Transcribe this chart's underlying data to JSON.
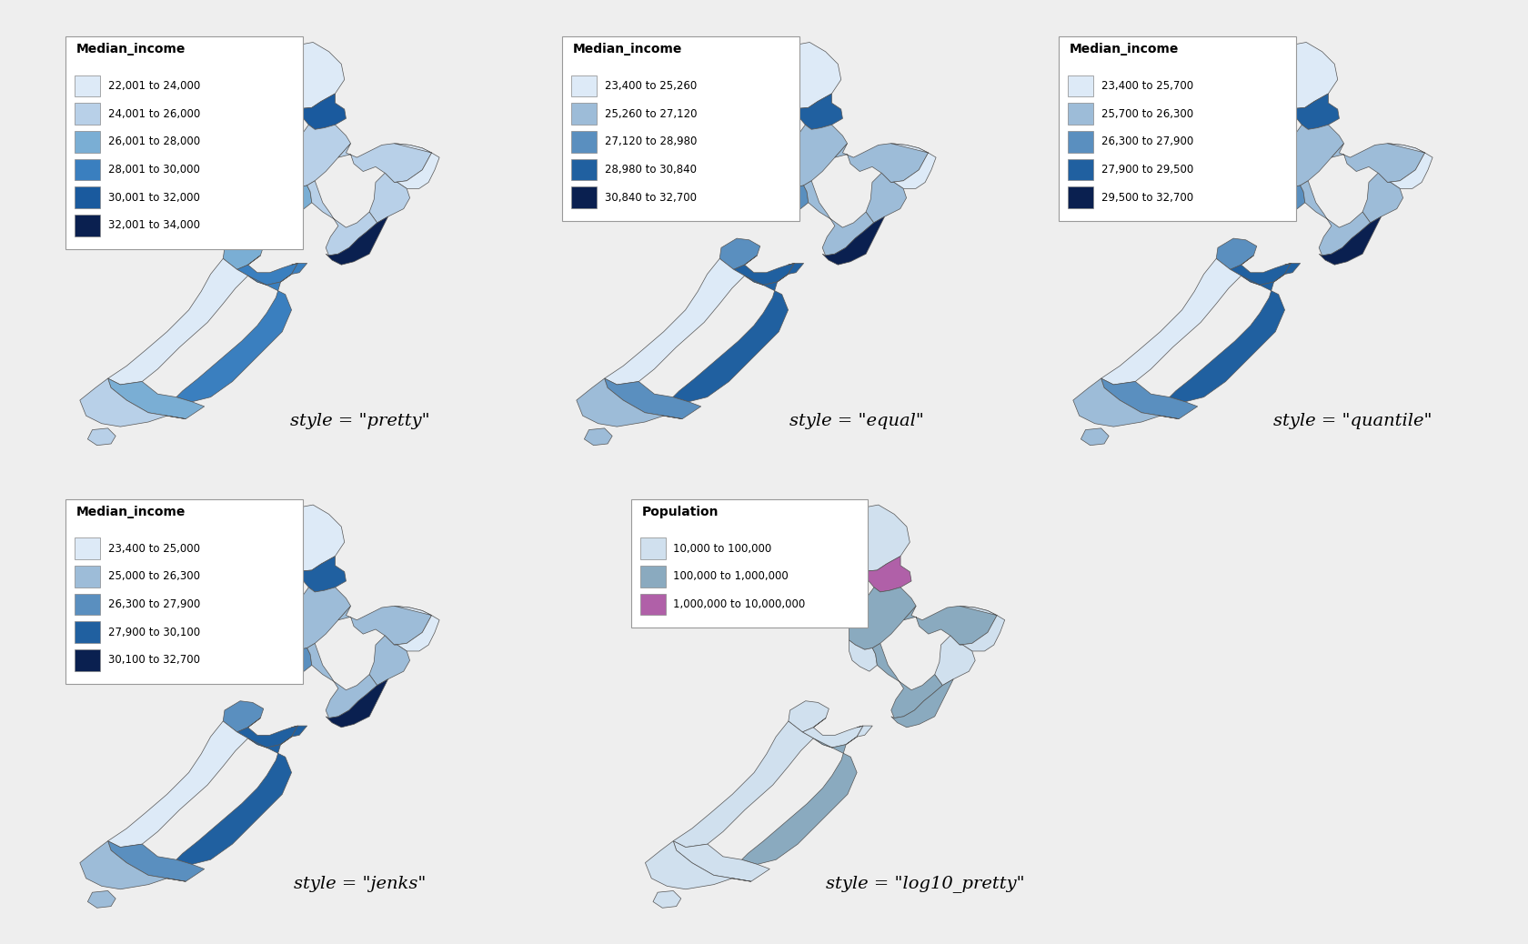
{
  "panels": [
    {
      "style_label": "style = \"pretty\"",
      "legend_title": "Median_income",
      "legend_entries": [
        "22,001 to 24,000",
        "24,001 to 26,000",
        "26,001 to 28,000",
        "28,001 to 30,000",
        "30,001 to 32,000",
        "32,001 to 34,000"
      ],
      "legend_colors": [
        "#ddeaf7",
        "#b8d0e8",
        "#7aaed4",
        "#3a7fbf",
        "#1a5a9e",
        "#0a2050"
      ]
    },
    {
      "style_label": "style = \"equal\"",
      "legend_title": "Median_income",
      "legend_entries": [
        "23,400 to 25,260",
        "25,260 to 27,120",
        "27,120 to 28,980",
        "28,980 to 30,840",
        "30,840 to 32,700"
      ],
      "legend_colors": [
        "#ddeaf7",
        "#9dbcd8",
        "#5a8fbf",
        "#2060a0",
        "#0a2050"
      ]
    },
    {
      "style_label": "style = \"quantile\"",
      "legend_title": "Median_income",
      "legend_entries": [
        "23,400 to 25,700",
        "25,700 to 26,300",
        "26,300 to 27,900",
        "27,900 to 29,500",
        "29,500 to 32,700"
      ],
      "legend_colors": [
        "#ddeaf7",
        "#9dbcd8",
        "#5a8fbf",
        "#2060a0",
        "#0a2050"
      ]
    },
    {
      "style_label": "style = \"jenks\"",
      "legend_title": "Median_income",
      "legend_entries": [
        "23,400 to 25,000",
        "25,000 to 26,300",
        "26,300 to 27,900",
        "27,900 to 30,100",
        "30,100 to 32,700"
      ],
      "legend_colors": [
        "#ddeaf7",
        "#9dbcd8",
        "#5a8fbf",
        "#2060a0",
        "#0a2050"
      ]
    },
    {
      "style_label": "style = \"log10_pretty\"",
      "legend_title": "Population",
      "legend_entries": [
        "10,000 to 100,000",
        "100,000 to 1,000,000",
        "1,000,000 to 10,000,000"
      ],
      "legend_colors": [
        "#d0e0ee",
        "#8aaabf",
        "#b060a8"
      ]
    }
  ],
  "fig_bg": "#eeeeee",
  "panel_bg": "#ffffff",
  "border_color": "#aaaaaa",
  "map_edge_color": "#555555",
  "label_fontsize": 14,
  "legend_title_fontsize": 10,
  "legend_entry_fontsize": 8.5
}
